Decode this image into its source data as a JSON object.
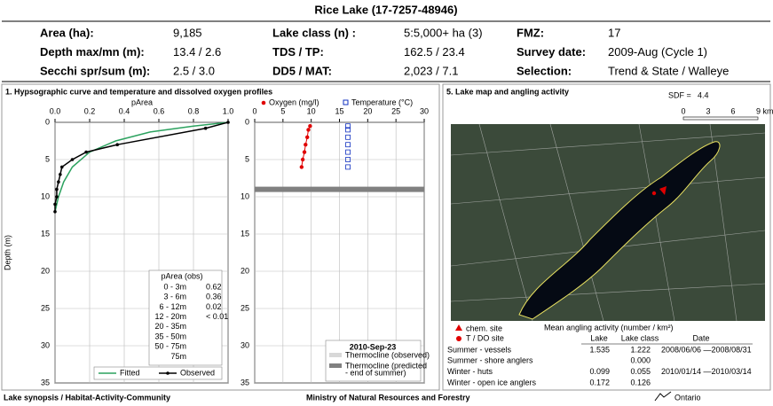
{
  "header": {
    "title": "Rice Lake  (17-7257-48946)"
  },
  "info": [
    [
      {
        "label": "Area (ha):",
        "value": "9,185"
      },
      {
        "label": "Lake class (n) :",
        "value": "5:5,000+ ha (3)"
      },
      {
        "label": "FMZ:",
        "value": "17"
      }
    ],
    [
      {
        "label": "Depth max/mn (m):",
        "value": "13.4  /  2.6"
      },
      {
        "label": "TDS / TP:",
        "value": "162.5 / 23.4"
      },
      {
        "label": "Survey date:",
        "value": "2009-Aug (Cycle 1)"
      }
    ],
    [
      {
        "label": "Secchi spr/sum (m):",
        "value": "2.5  /  3.0"
      },
      {
        "label": "DD5 / MAT:",
        "value": "2,023 / 7.1"
      },
      {
        "label": "Selection:",
        "value": "Trend & State / Walleye"
      }
    ]
  ],
  "panel1": {
    "title": "1. Hypsographic curve and temperature and dissolved oxygen profiles",
    "y_label": "Depth (m)",
    "ylim": [
      0,
      35
    ],
    "yticks": [
      0,
      5,
      10,
      15,
      20,
      25,
      30,
      35
    ],
    "hypso": {
      "x_label": "pArea",
      "xlim": [
        0,
        1
      ],
      "xticks": [
        {
          "value": 0,
          "label": "0.0"
        },
        {
          "value": 0.2,
          "label": "0.2"
        },
        {
          "value": 0.4,
          "label": "0.4"
        },
        {
          "value": 0.6,
          "label": "0.6"
        },
        {
          "value": 0.8,
          "label": "0.8"
        },
        {
          "value": 1,
          "label": "1.0"
        }
      ],
      "series": [
        {
          "name": "Fitted",
          "color": "#2ca25f",
          "x": [
            1,
            0.8,
            0.55,
            0.35,
            0.2,
            0.1,
            0.05,
            0.02,
            0
          ],
          "y": [
            0,
            0.5,
            1.3,
            2.5,
            4,
            6,
            8,
            10,
            12
          ]
        },
        {
          "name": "Observed",
          "color": "#000000",
          "x": [
            1,
            0.87,
            0.36,
            0.18,
            0.1,
            0.04,
            0.03,
            0.02,
            0.01,
            0.01,
            0,
            0
          ],
          "y": [
            0,
            0.8,
            3,
            4,
            5,
            6,
            7,
            8,
            9,
            10,
            11,
            12
          ]
        }
      ],
      "table": {
        "title": "pArea (obs)",
        "rows": [
          [
            "0 - 3m",
            0.62
          ],
          [
            "3 - 6m",
            0.36
          ],
          [
            "6 - 12m",
            0.02
          ],
          [
            "12 - 20m",
            "< 0.01"
          ],
          [
            "20 - 35m"
          ],
          [
            "35 - 50m"
          ],
          [
            "50 - 75m"
          ],
          [
            "75m"
          ]
        ]
      }
    },
    "profile": {
      "xlim": [
        0,
        30
      ],
      "xticks": [
        0,
        5,
        10,
        15,
        20,
        25,
        30
      ],
      "series": [
        {
          "name": "Oxygen (mg/l)",
          "color": "#e00000",
          "x": [
            9.8,
            9.5,
            9.3,
            9.0,
            8.8,
            8.5,
            8.3
          ],
          "y": [
            0.5,
            1,
            2,
            3,
            4,
            5,
            6
          ]
        },
        {
          "name": "Temperature (°C)",
          "color": "#1030c0",
          "x": [
            16.5,
            16.5,
            16.5,
            16.5,
            16.5,
            16.5,
            16.5
          ],
          "y": [
            0.5,
            1,
            2,
            3,
            4,
            5,
            6
          ]
        }
      ],
      "thermocline_predicted": 9,
      "legend": {
        "title": "2010-Sep-23",
        "observed": "Thermocline (observed)",
        "predicted": [
          "Thermocline (predicted",
          "- end of summer)"
        ]
      }
    }
  },
  "panel5": {
    "title": "5. Lake map and angling activity",
    "sdf_label": "SDF =",
    "sdf": 4.4,
    "scale": [
      "0",
      "3",
      "6",
      "9 km"
    ],
    "legend": [
      "chem. site",
      "T / DO site"
    ],
    "activity_title": "Mean angling activity (number / km²)",
    "columns": [
      "Lake",
      "Lake class",
      "Date"
    ],
    "rows": [
      [
        "Summer - vessels",
        1.535,
        1.222,
        "2008/06/06 —2008/08/31"
      ],
      [
        "Summer - shore anglers",
        null,
        "0.000",
        null
      ],
      [
        "Winter - huts",
        0.099,
        0.055,
        "2010/01/14 —2010/03/14"
      ],
      [
        "Winter - open ice anglers",
        0.172,
        0.126,
        null
      ]
    ]
  },
  "footer": {
    "left": "Lake synopsis / Habitat-Activity-Community",
    "center": "Ministry of Natural Resources and Forestry",
    "logo": "Ontario"
  }
}
